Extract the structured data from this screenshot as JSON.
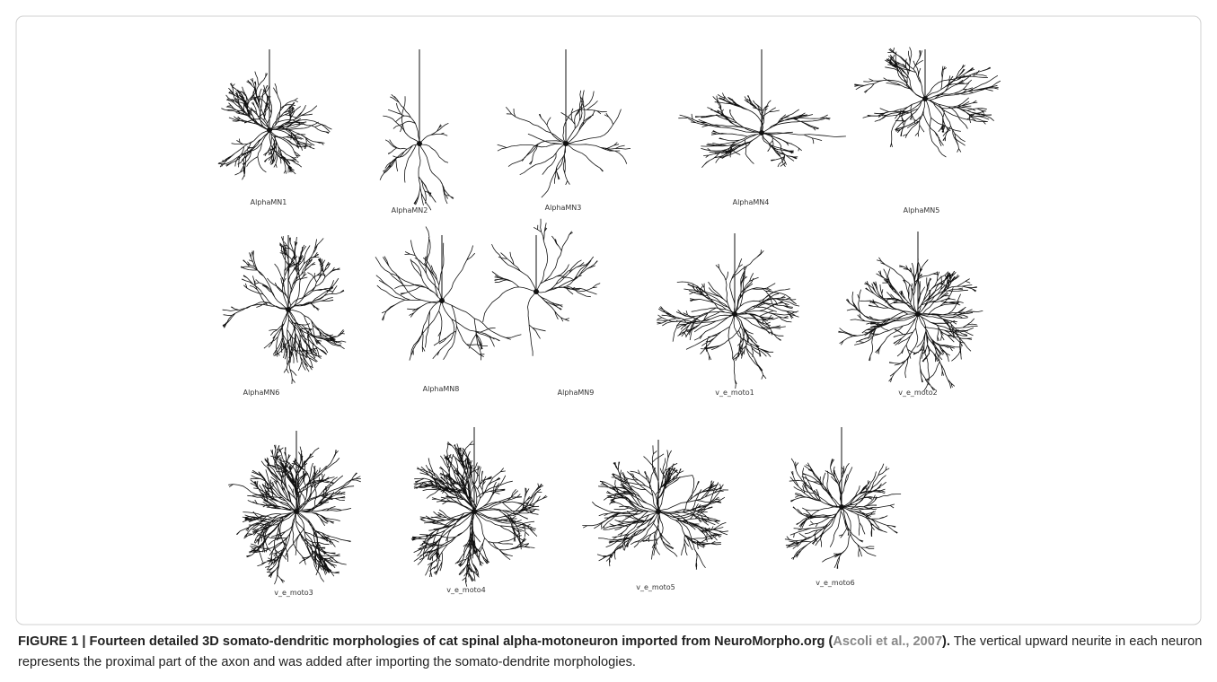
{
  "figure": {
    "panels": [
      {
        "label": "AlphaMN1"
      },
      {
        "label": "AlphaMN2"
      },
      {
        "label": "AlphaMN3"
      },
      {
        "label": "AlphaMN4"
      },
      {
        "label": "AlphaMN5"
      },
      {
        "label": "AlphaMN6"
      },
      {
        "label": "AlphaMN8"
      },
      {
        "label": "AlphaMN9"
      },
      {
        "label": "v_e_moto1"
      },
      {
        "label": "v_e_moto2"
      },
      {
        "label": "v_e_moto3"
      },
      {
        "label": "v_e_moto4"
      },
      {
        "label": "v_e_moto5"
      },
      {
        "label": "v_e_moto6"
      }
    ]
  },
  "caption": {
    "bold_text": "FIGURE 1 | Fourteen detailed 3D somato-dendritic morphologies of cat spinal alpha-motoneuron imported from NeuroMorpho.org (",
    "citation": "Ascoli et al., 2007",
    "bold_close": ").",
    "text": " The vertical upward neurite in each neuron represents the proximal part of the axon and was added after importing the somato-dendrite morphologies."
  }
}
